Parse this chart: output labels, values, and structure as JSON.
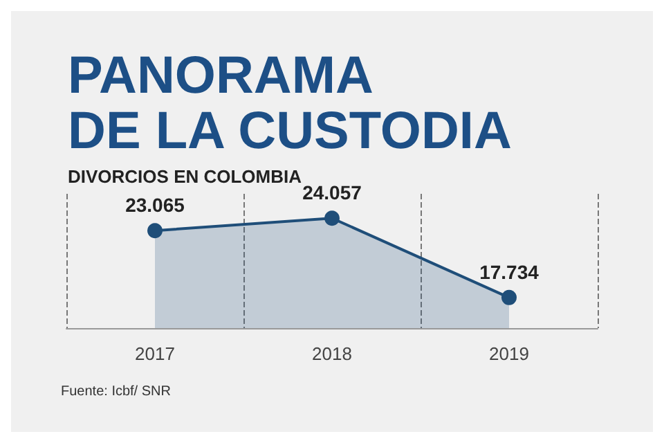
{
  "chart_data": {
    "type": "area",
    "title": "PANORAMA\nDE LA CUSTODIA",
    "subtitle": "DIVORCIOS EN COLOMBIA",
    "categories": [
      "2017",
      "2018",
      "2019"
    ],
    "series": [
      {
        "color": "#1f4e79",
        "values": [
          23065,
          24057,
          17734
        ],
        "value_labels": [
          "23.065",
          "24.057",
          "17.734"
        ]
      }
    ],
    "ylim": [
      15300,
      26000
    ],
    "tick_labels": "x",
    "grid": "x",
    "marker": "circle",
    "annotations": [
      "Fuente: Icbf/ SNR"
    ]
  }
}
